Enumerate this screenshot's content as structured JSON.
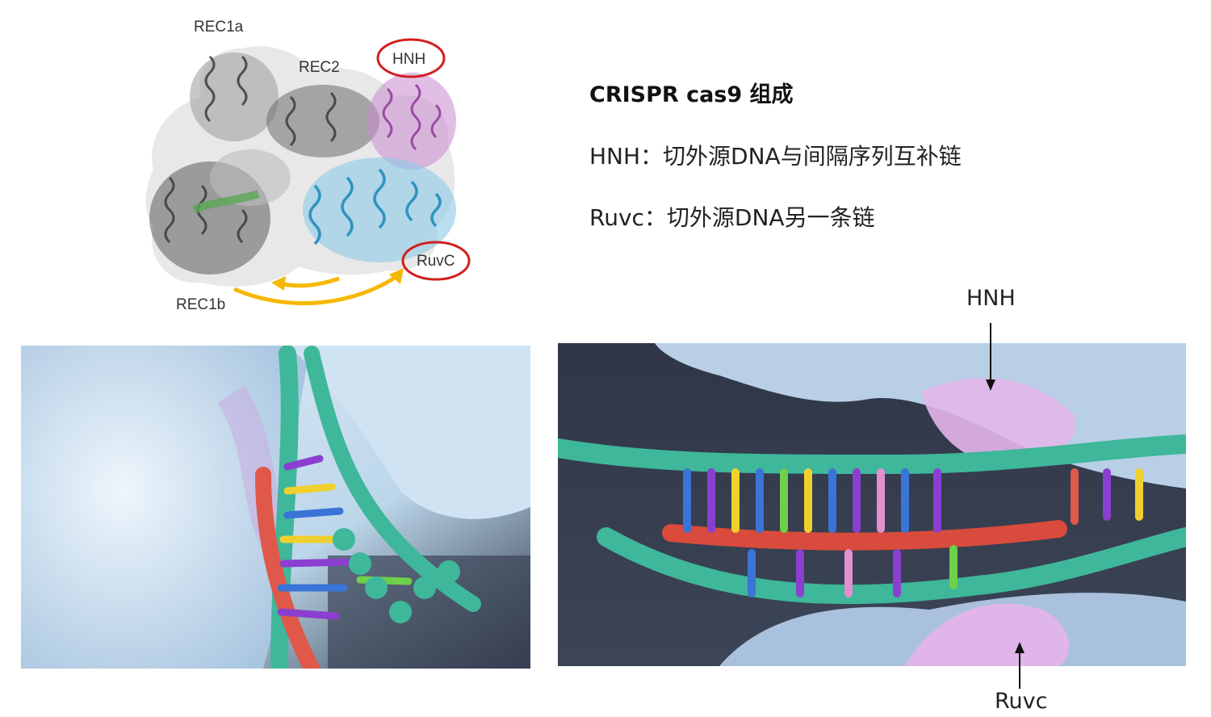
{
  "figure": {
    "labels": {
      "rec1a": "REC1a",
      "rec2": "REC2",
      "hnh": "HNH",
      "ruvc": "RuvC",
      "rec1b": "REC1b"
    },
    "colors": {
      "hnh": "#b060b8",
      "ruvc": "#3aa5cf",
      "rec": "#5a5a5a",
      "circle": "#d21f1f",
      "arrow": "#f5b800"
    }
  },
  "info": {
    "title": "CRISPR cas9 组成",
    "lines": [
      "HNH：切外源DNA与间隔序列互补链",
      "Ruvc：切外源DNA另一条链"
    ]
  },
  "callouts": {
    "hnh": "HNH",
    "ruvc": "Ruvc"
  }
}
